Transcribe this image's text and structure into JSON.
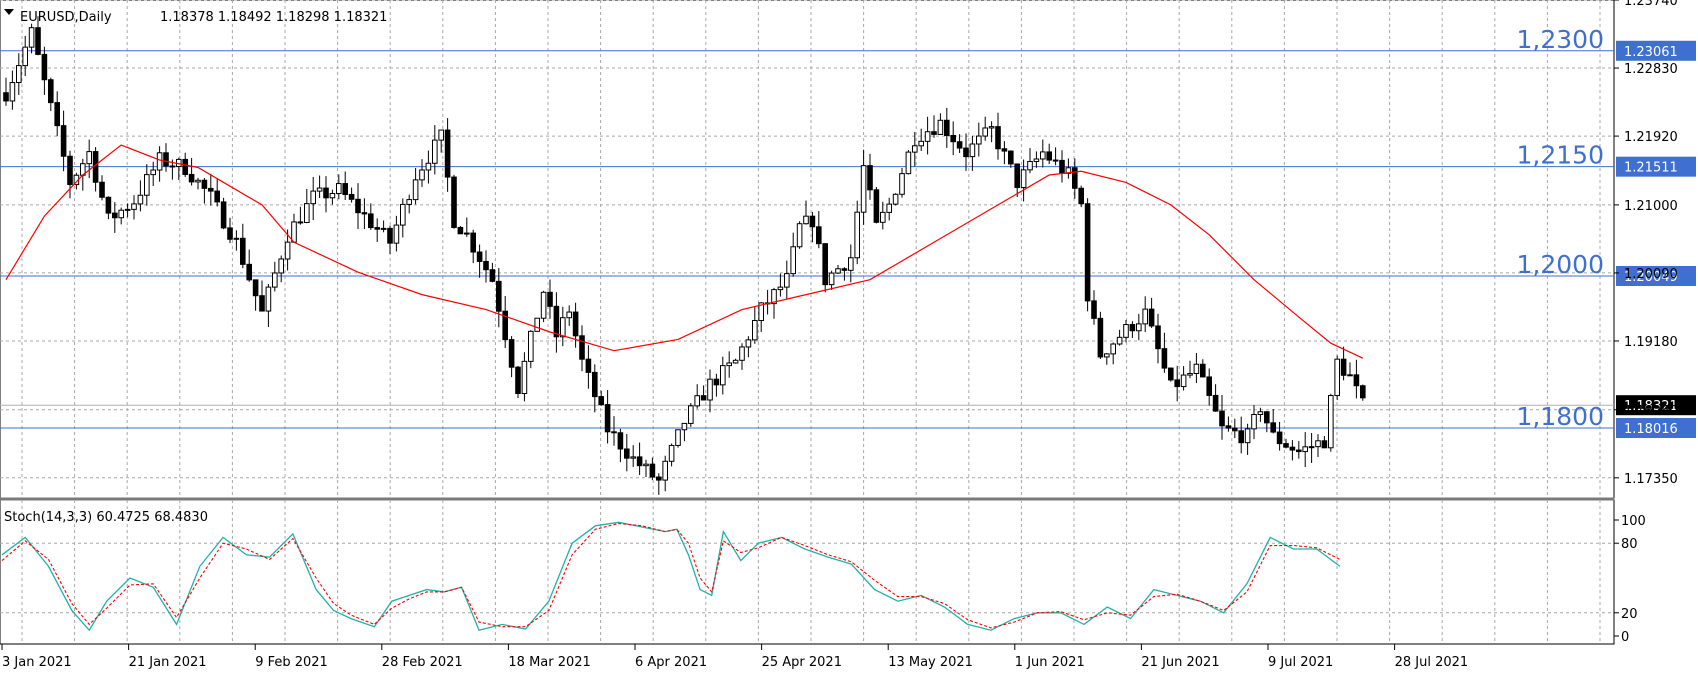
{
  "window": {
    "symbol_label": "EURUSD,Daily",
    "ohlc_label": "1.18378 1.18492 1.18298 1.18321",
    "indicator_label": "Stoch(14,3,3) 60.4725 68.4830"
  },
  "colors": {
    "background": "#ffffff",
    "grid": "#a8a8a8",
    "level_line": "#3f6fd0",
    "moving_average": "#ff0000",
    "stoch_main": "#20b2aa",
    "stoch_signal": "#ff0000",
    "current_price_tag": "#000000"
  },
  "chart_data": [
    {
      "type": "candlestick",
      "symbol": "EURUSD",
      "timeframe": "Daily",
      "ylim": [
        1.1708,
        1.2374
      ],
      "y_ticks": [
        "1.23740",
        "1.22830",
        "1.21920",
        "1.21000",
        "1.20090",
        "1.19180",
        "1.18260",
        "1.17350"
      ],
      "x_ticks": [
        "3 Jan 2021",
        "21 Jan 2021",
        "9 Feb 2021",
        "28 Feb 2021",
        "18 Mar 2021",
        "6 Apr 2021",
        "25 Apr 2021",
        "13 May 2021",
        "1 Jun 2021",
        "21 Jun 2021",
        "9 Jul 2021",
        "28 Jul 2021"
      ],
      "grid": true,
      "current_price": 1.18321,
      "current_price_label": "1.18321",
      "levels": [
        {
          "value": 1.23061,
          "label": "1.23061",
          "text": "1,2300"
        },
        {
          "value": 1.21511,
          "label": "1.21511",
          "text": "1,2150"
        },
        {
          "value": 1.20049,
          "label": "1.20049",
          "text": "1,2000"
        },
        {
          "value": 1.18016,
          "label": "1.18016",
          "text": "1,1800"
        }
      ],
      "close_path": [
        [
          0,
          1.225
        ],
        [
          4,
          1.233
        ],
        [
          7,
          1.223
        ],
        [
          10,
          1.213
        ],
        [
          13,
          1.217
        ],
        [
          16,
          1.208
        ],
        [
          20,
          1.2105
        ],
        [
          24,
          1.216
        ],
        [
          28,
          1.215
        ],
        [
          32,
          1.211
        ],
        [
          36,
          1.205
        ],
        [
          40,
          1.1955
        ],
        [
          44,
          1.206
        ],
        [
          48,
          1.211
        ],
        [
          52,
          1.212
        ],
        [
          56,
          1.2085
        ],
        [
          60,
          1.205
        ],
        [
          64,
          1.214
        ],
        [
          68,
          1.219
        ],
        [
          70,
          1.208
        ],
        [
          72,
          1.206
        ],
        [
          76,
          1.2
        ],
        [
          80,
          1.1855
        ],
        [
          84,
          1.1985
        ],
        [
          86,
          1.1925
        ],
        [
          88,
          1.196
        ],
        [
          90,
          1.189
        ],
        [
          94,
          1.18
        ],
        [
          98,
          1.176
        ],
        [
          102,
          1.173
        ],
        [
          106,
          1.181
        ],
        [
          110,
          1.186
        ],
        [
          114,
          1.189
        ],
        [
          118,
          1.196
        ],
        [
          122,
          1.2
        ],
        [
          124,
          1.207
        ],
        [
          126,
          1.208
        ],
        [
          128,
          1.2
        ],
        [
          132,
          1.203
        ],
        [
          134,
          1.215
        ],
        [
          136,
          1.207
        ],
        [
          138,
          1.21
        ],
        [
          142,
          1.219
        ],
        [
          146,
          1.221
        ],
        [
          150,
          1.217
        ],
        [
          154,
          1.22
        ],
        [
          158,
          1.213
        ],
        [
          162,
          1.217
        ],
        [
          166,
          1.214
        ],
        [
          168,
          1.21
        ],
        [
          169,
          1.198
        ],
        [
          171,
          1.19
        ],
        [
          174,
          1.1925
        ],
        [
          178,
          1.1955
        ],
        [
          182,
          1.1855
        ],
        [
          186,
          1.188
        ],
        [
          190,
          1.18
        ],
        [
          194,
          1.179
        ],
        [
          196,
          1.183
        ],
        [
          198,
          1.179
        ],
        [
          202,
          1.177
        ],
        [
          206,
          1.1785
        ],
        [
          208,
          1.189
        ],
        [
          210,
          1.187
        ],
        [
          212,
          1.1832
        ]
      ],
      "moving_average": [
        [
          0,
          1.2
        ],
        [
          6,
          1.2085
        ],
        [
          12,
          1.214
        ],
        [
          18,
          1.218
        ],
        [
          24,
          1.216
        ],
        [
          30,
          1.215
        ],
        [
          34,
          1.213
        ],
        [
          40,
          1.21
        ],
        [
          45,
          1.205
        ],
        [
          55,
          1.201
        ],
        [
          65,
          1.198
        ],
        [
          75,
          1.196
        ],
        [
          85,
          1.193
        ],
        [
          95,
          1.1905
        ],
        [
          105,
          1.192
        ],
        [
          115,
          1.196
        ],
        [
          125,
          1.198
        ],
        [
          135,
          1.2
        ],
        [
          145,
          1.205
        ],
        [
          155,
          1.21
        ],
        [
          163,
          1.214
        ],
        [
          168,
          1.2145
        ],
        [
          175,
          1.213
        ],
        [
          182,
          1.21
        ],
        [
          188,
          1.206
        ],
        [
          195,
          1.2
        ],
        [
          202,
          1.195
        ],
        [
          207,
          1.1915
        ],
        [
          212,
          1.1895
        ]
      ]
    },
    {
      "type": "line",
      "indicator": "Stochastic",
      "params": [
        14,
        3,
        3
      ],
      "ylim": [
        0,
        100
      ],
      "y_ticks": [
        "100",
        "80",
        "20",
        "0"
      ],
      "levels": [
        80,
        20
      ],
      "series": [
        {
          "name": "",
          "values": [
            [
              0,
              70
            ],
            [
              4,
              85
            ],
            [
              8,
              60
            ],
            [
              12,
              22
            ],
            [
              15,
              5
            ],
            [
              18,
              30
            ],
            [
              22,
              50
            ],
            [
              26,
              42
            ],
            [
              30,
              10
            ],
            [
              34,
              60
            ],
            [
              38,
              85
            ],
            [
              42,
              70
            ],
            [
              46,
              68
            ],
            [
              50,
              88
            ],
            [
              54,
              40
            ],
            [
              57,
              22
            ],
            [
              60,
              15
            ],
            [
              64,
              8
            ],
            [
              67,
              30
            ],
            [
              70,
              35
            ],
            [
              73,
              40
            ],
            [
              76,
              38
            ],
            [
              79,
              42
            ],
            [
              82,
              5
            ],
            [
              86,
              10
            ],
            [
              90,
              6
            ],
            [
              94,
              30
            ],
            [
              98,
              80
            ],
            [
              102,
              95
            ],
            [
              106,
              98
            ],
            [
              110,
              94
            ],
            [
              114,
              90
            ],
            [
              116,
              92
            ],
            [
              118,
              70
            ],
            [
              120,
              40
            ],
            [
              122,
              35
            ],
            [
              124,
              90
            ],
            [
              127,
              65
            ],
            [
              130,
              80
            ],
            [
              134,
              85
            ],
            [
              138,
              75
            ],
            [
              142,
              68
            ],
            [
              146,
              62
            ],
            [
              150,
              40
            ],
            [
              154,
              30
            ],
            [
              158,
              35
            ],
            [
              162,
              25
            ],
            [
              166,
              10
            ],
            [
              170,
              5
            ],
            [
              174,
              15
            ],
            [
              178,
              20
            ],
            [
              182,
              20
            ],
            [
              186,
              10
            ],
            [
              190,
              25
            ],
            [
              194,
              15
            ],
            [
              198,
              40
            ],
            [
              202,
              35
            ],
            [
              206,
              30
            ],
            [
              210,
              20
            ],
            [
              214,
              45
            ],
            [
              218,
              85
            ],
            [
              222,
              75
            ],
            [
              226,
              75
            ],
            [
              230,
              60
            ]
          ]
        },
        {
          "name": "",
          "values": [
            [
              0,
              65
            ],
            [
              4,
              82
            ],
            [
              8,
              66
            ],
            [
              12,
              28
            ],
            [
              15,
              10
            ],
            [
              18,
              24
            ],
            [
              22,
              44
            ],
            [
              26,
              45
            ],
            [
              30,
              16
            ],
            [
              34,
              50
            ],
            [
              38,
              80
            ],
            [
              42,
              75
            ],
            [
              46,
              66
            ],
            [
              50,
              84
            ],
            [
              54,
              50
            ],
            [
              57,
              28
            ],
            [
              60,
              18
            ],
            [
              64,
              10
            ],
            [
              67,
              24
            ],
            [
              70,
              32
            ],
            [
              73,
              38
            ],
            [
              76,
              38
            ],
            [
              79,
              42
            ],
            [
              82,
              12
            ],
            [
              86,
              8
            ],
            [
              90,
              8
            ],
            [
              94,
              22
            ],
            [
              98,
              70
            ],
            [
              102,
              92
            ],
            [
              106,
              97
            ],
            [
              110,
              95
            ],
            [
              114,
              90
            ],
            [
              116,
              92
            ],
            [
              118,
              80
            ],
            [
              120,
              50
            ],
            [
              122,
              38
            ],
            [
              124,
              82
            ],
            [
              127,
              72
            ],
            [
              130,
              76
            ],
            [
              134,
              85
            ],
            [
              138,
              78
            ],
            [
              142,
              70
            ],
            [
              146,
              64
            ],
            [
              150,
              48
            ],
            [
              154,
              34
            ],
            [
              158,
              34
            ],
            [
              162,
              28
            ],
            [
              166,
              14
            ],
            [
              170,
              7
            ],
            [
              174,
              12
            ],
            [
              178,
              20
            ],
            [
              182,
              21
            ],
            [
              186,
              14
            ],
            [
              190,
              20
            ],
            [
              194,
              18
            ],
            [
              198,
              34
            ],
            [
              202,
              36
            ],
            [
              206,
              30
            ],
            [
              210,
              22
            ],
            [
              214,
              38
            ],
            [
              218,
              78
            ],
            [
              222,
              78
            ],
            [
              226,
              76
            ],
            [
              230,
              66
            ]
          ]
        }
      ]
    }
  ]
}
